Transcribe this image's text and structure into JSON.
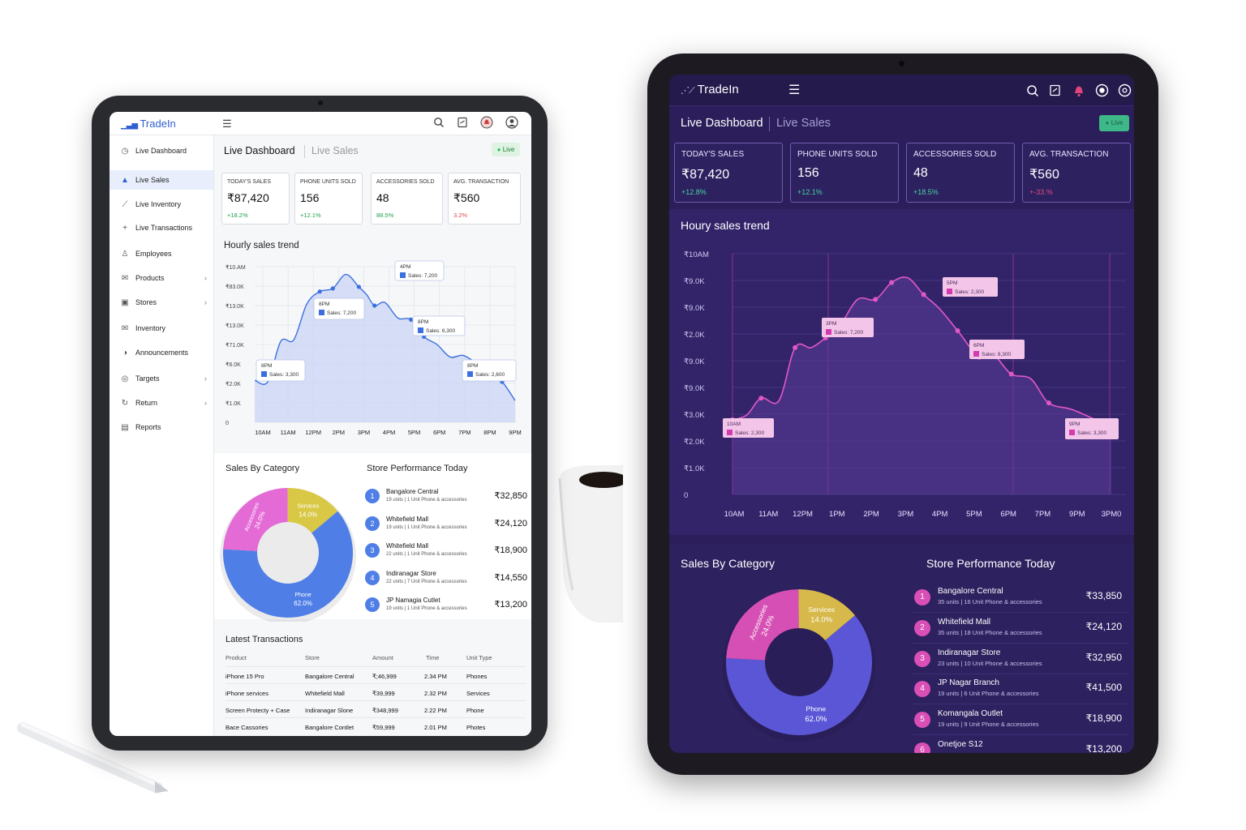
{
  "colors": {
    "light_accent": "#2f5fd0",
    "light_series": "#4f7fe6",
    "dark_accent": "#d94fb6",
    "dark_bg": "#2b1e5a",
    "positive": "#1fa34a",
    "negative": "#e04b4b",
    "live": "#22c55e"
  },
  "light": {
    "app_name": "TradeIn",
    "icons": [
      "search-icon",
      "document-icon",
      "notification-icon",
      "profile-icon"
    ],
    "sidebar": {
      "items": [
        {
          "label": "Live Dashboard",
          "icon": "clock-icon"
        },
        {
          "label": "Live Sales",
          "icon": "bag-icon",
          "active": true
        },
        {
          "label": "Live Inventory",
          "icon": "trend-icon"
        },
        {
          "label": "Live Transactions",
          "icon": "plus-icon"
        },
        {
          "label": "Employees",
          "icon": "user-icon"
        },
        {
          "label": "Products",
          "icon": "mail-icon",
          "chevron": true
        },
        {
          "label": "Stores",
          "icon": "store-icon",
          "chevron": true
        },
        {
          "label": "Inventory",
          "icon": "mail-icon"
        },
        {
          "label": "Announcements",
          "icon": "megaphone-icon"
        },
        {
          "label": "Targets",
          "icon": "target-icon",
          "chevron": true
        },
        {
          "label": "Return",
          "icon": "return-icon",
          "chevron": true
        },
        {
          "label": "Reports",
          "icon": "report-icon"
        }
      ]
    },
    "tabs": {
      "active": "Live Dashboard",
      "inactive": "Live Sales"
    },
    "live_badge": "Live",
    "kpis": [
      {
        "title": "TODAY'S SALES",
        "value": "₹87,420",
        "delta": "+18.2%",
        "trend": "up"
      },
      {
        "title": "PHONE UNITS SOLD",
        "value": "156",
        "delta": "+12.1%",
        "trend": "up"
      },
      {
        "title": "ACCESSORIES SOLD",
        "value": "48",
        "delta": "88.5%",
        "trend": "up"
      },
      {
        "title": "AVG. TRANSACTION",
        "value": "₹560",
        "delta": "3.2%",
        "trend": "down"
      }
    ],
    "chart_title": "Hourly sales trend",
    "sales_by_category": "Sales By Category",
    "store_perf_title": "Store Performance Today",
    "stores": [
      {
        "name": "Bangalore Central",
        "sub": "19 units | 1 Unit Phone & accessories",
        "amount": "₹32,850"
      },
      {
        "name": "Whitefield Mall",
        "sub": "19 units | 1 Unit Phone & accessories",
        "amount": "₹24,120"
      },
      {
        "name": "Whitefield Mall",
        "sub": "22 units | 1 Unit Phone & accessories",
        "amount": "₹18,900"
      },
      {
        "name": "Indiranagar Store",
        "sub": "22 units | 7 Unit Phone & accessories",
        "amount": "₹14,550"
      },
      {
        "name": "JP Namagia Cutlet",
        "sub": "19 units | 1 Unit Phone & accessories",
        "amount": "₹13,200"
      }
    ],
    "transactions_title": "Latest Transactions",
    "transaction_headers": [
      "Product",
      "Store",
      "Amount",
      "Time",
      "Unit Type"
    ],
    "transactions": [
      [
        "iPhone 15 Pro",
        "Bangalore Central",
        "₹;46,999",
        "2.34 PM",
        "Phones"
      ],
      [
        "iPhone services",
        "Whitefield Mall",
        "₹39,999",
        "2.32 PM",
        "Services"
      ],
      [
        "Screen Protecty + Case",
        "Indiranagar Slone",
        "₹348,999",
        "2.22 PM",
        "Phone"
      ],
      [
        "Bace Cassories",
        "Bangalore Contlet",
        "₹59,999",
        "2.01 PM",
        "Photes"
      ]
    ]
  },
  "dark": {
    "app_name": "TradeIn",
    "icons": [
      "search-icon",
      "document-icon",
      "notification-icon",
      "record-icon",
      "settings-icon"
    ],
    "tabs": {
      "active": "Live Dashboard",
      "inactive": "Live Sales"
    },
    "live_badge": "Live",
    "kpis": [
      {
        "title": "TODAY'S SALES",
        "value": "₹87,420",
        "delta": "+12.8%",
        "trend": "up"
      },
      {
        "title": "PHONE UNITS SOLD",
        "value": "156",
        "delta": "+12.1%",
        "trend": "up"
      },
      {
        "title": "ACCESSORIES SOLD",
        "value": "48",
        "delta": "+18.5%",
        "trend": "up"
      },
      {
        "title": "AVG. TRANSACTION",
        "value": "₹560",
        "delta": "+-33.%",
        "trend": "down"
      }
    ],
    "chart_title": "Houry sales trend",
    "sales_by_category": "Sales By Category",
    "store_perf_title": "Store Performance Today",
    "stores": [
      {
        "name": "Bangalore Central",
        "sub": "35 units | 16 Unit Phone & accessories",
        "amount": "₹33,850"
      },
      {
        "name": "Whitefield Mall",
        "sub": "35 units | 18 Unit Phone & accessories",
        "amount": "₹24,120"
      },
      {
        "name": "Indiranagar Store",
        "sub": "23 units | 10 Unit Phone & accessories",
        "amount": "₹32,950"
      },
      {
        "name": "JP Nagar Branch",
        "sub": "19 units | 6 Unit Phone & accessories",
        "amount": "₹41,500"
      },
      {
        "name": "Komangala Outlet",
        "sub": "19 units | 9 Unit Phone & accessories",
        "amount": "₹18,900"
      },
      {
        "name": "Onetjoe S12",
        "sub": "",
        "amount": "₹13,200"
      }
    ]
  },
  "chart_data": [
    {
      "type": "area",
      "title": "Hourly sales trend",
      "categories": [
        "10AM",
        "11AM",
        "12PM",
        "2PM",
        "3PM",
        "4PM",
        "5PM",
        "6PM",
        "7PM",
        "8PM",
        "9PM"
      ],
      "y_tick_labels": [
        "₹10.AM",
        "₹83.0K",
        "₹13.0K",
        "₹13.0K",
        "₹71.0K",
        "₹6.0K",
        "₹2.0K",
        "₹1.0K",
        "0"
      ],
      "ylim": [
        0,
        10000
      ],
      "x": [
        0,
        0.5,
        1,
        1.5,
        2,
        2.5,
        3,
        3.5,
        4,
        4.3,
        4.6,
        5,
        5.5,
        6,
        6.5,
        7,
        7.5,
        8,
        8.5,
        9,
        9.5,
        10
      ],
      "values": [
        2700,
        2600,
        5200,
        5300,
        7600,
        8400,
        8600,
        9500,
        8700,
        8200,
        7500,
        7700,
        6700,
        6600,
        5500,
        5000,
        4200,
        4300,
        3800,
        3100,
        2600,
        1400
      ],
      "annotations": [
        {
          "time": "4PM",
          "label": "Sales: 7,200"
        },
        {
          "time": "8PM",
          "label": "Sales: 7,200"
        },
        {
          "time": "8PM",
          "label": "Sales: 6,300"
        },
        {
          "time": "8PM",
          "label": "Sales: 3,300"
        },
        {
          "time": "8PM",
          "label": "Sales: 2,600"
        }
      ],
      "grid": true
    },
    {
      "type": "line",
      "title": "Houry sales trend",
      "categories": [
        "10AM",
        "11AM",
        "12PM",
        "1PM",
        "2PM",
        "3PM",
        "4PM",
        "5PM",
        "6PM",
        "7PM",
        "9PM",
        "3PM0"
      ],
      "y_tick_labels": [
        "₹10AM",
        "₹9.0K",
        "₹9.0K",
        "₹2.0K",
        "₹9.0K",
        "₹9.0K",
        "₹3.0K",
        "₹2.0K",
        "₹1.0K",
        "0"
      ],
      "ylim": [
        0,
        10000
      ],
      "x": [
        0,
        0.4,
        0.8,
        1.3,
        1.75,
        2.2,
        2.6,
        3,
        3.5,
        4,
        4.45,
        4.9,
        5.35,
        5.8,
        6.3,
        6.9,
        7.3,
        7.8,
        8.35,
        8.85,
        9.55,
        10.6
      ],
      "values": [
        3100,
        3300,
        4000,
        3900,
        6100,
        6100,
        6500,
        7000,
        8100,
        8100,
        8800,
        9000,
        8300,
        7700,
        6800,
        5700,
        5800,
        5000,
        4800,
        3800,
        3500,
        2800
      ],
      "annotations": [
        {
          "time": "10AM",
          "label": "Sales: 2,300"
        },
        {
          "time": "3PM",
          "label": "Sales: 7,200"
        },
        {
          "time": "5PM",
          "label": "Sales: 2,300"
        },
        {
          "time": "6PM",
          "label": "Sales: 8,300"
        },
        {
          "time": "9PM",
          "label": "Sales: 3,300"
        }
      ],
      "grid": true
    },
    {
      "type": "pie",
      "title": "Sales By Category",
      "categories": [
        "Phone",
        "Accessories",
        "Services"
      ],
      "values": [
        62.0,
        24.0,
        14.0
      ],
      "labels": [
        "Phone",
        "Accessories",
        "Services"
      ],
      "value_labels": [
        "62.0%",
        "24.0%",
        "14.0%"
      ]
    },
    {
      "type": "pie",
      "title": "Sales By Category",
      "categories": [
        "Phone",
        "Accessories",
        "Services"
      ],
      "values": [
        62.0,
        24.0,
        14.0
      ],
      "labels": [
        "Phone",
        "Accessories",
        "Services"
      ],
      "value_labels": [
        "62.0%",
        "24.0%",
        "14.0%"
      ]
    }
  ]
}
